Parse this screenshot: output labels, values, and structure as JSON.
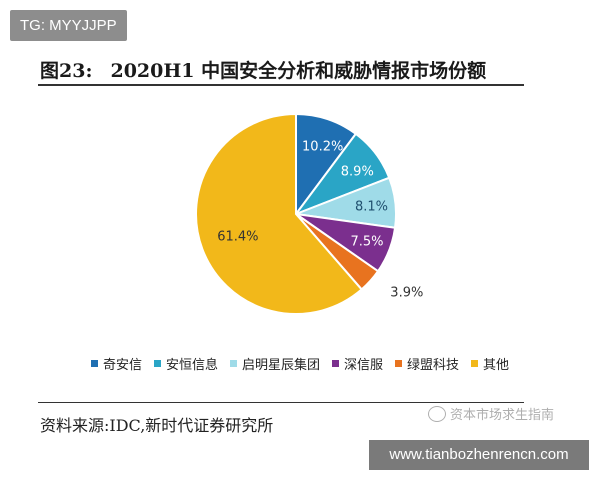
{
  "badge": {
    "text": "TG: MYYJJPP"
  },
  "figure": {
    "number": "图23:",
    "title": "2020H1 中国安全分析和威胁情报市场份额"
  },
  "chart_data": {
    "type": "pie",
    "title": "2020H1 中国安全分析和威胁情报市场份额",
    "unit": "%",
    "start_angle_deg": 0,
    "direction": "clockwise",
    "legend_position": "bottom",
    "slices": [
      {
        "name": "奇安信",
        "value": 10.2,
        "label": "10.2%",
        "color": "#1f6fb2",
        "label_color": "#ffffff",
        "label_pos": "inside"
      },
      {
        "name": "安恒信息",
        "value": 8.9,
        "label": "8.9%",
        "color": "#2aa5c6",
        "label_color": "#ffffff",
        "label_pos": "inside"
      },
      {
        "name": "启明星辰集团",
        "value": 8.1,
        "label": "8.1%",
        "color": "#9fdbe8",
        "label_color": "#1f4f6e",
        "label_pos": "inside"
      },
      {
        "name": "深信服",
        "value": 7.5,
        "label": "7.5%",
        "color": "#7b2f8e",
        "label_color": "#ffffff",
        "label_pos": "inside"
      },
      {
        "name": "绿盟科技",
        "value": 3.9,
        "label": "3.9%",
        "color": "#e8731f",
        "label_color": "#333333",
        "label_pos": "outside"
      },
      {
        "name": "其他",
        "value": 61.4,
        "label": "61.4%",
        "color": "#f2b81a",
        "label_color": "#333333",
        "label_pos": "inside"
      }
    ]
  },
  "source": {
    "text": "资料来源:IDC,新时代证券研究所"
  },
  "watermark": {
    "text": "资本市场求生指南"
  },
  "site_banner": {
    "text": "www.tianbozhenrencn.com"
  }
}
